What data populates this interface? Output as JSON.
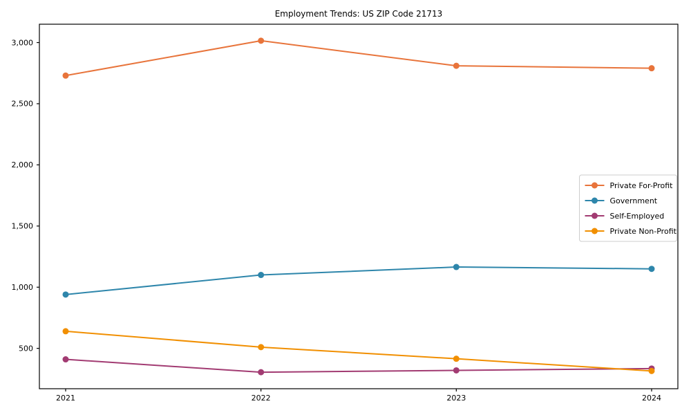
{
  "chart_data": {
    "type": "line",
    "title": "Employment Trends: US ZIP Code 21713",
    "xlabel": "",
    "ylabel": "",
    "x": [
      "2021",
      "2022",
      "2023",
      "2024"
    ],
    "series": [
      {
        "name": "Private For-Profit",
        "color": "#e8743b",
        "values": [
          2730,
          3015,
          2810,
          2790
        ]
      },
      {
        "name": "Government",
        "color": "#2e86ab",
        "values": [
          940,
          1100,
          1165,
          1150
        ]
      },
      {
        "name": "Self-Employed",
        "color": "#a23b72",
        "values": [
          410,
          305,
          320,
          335
        ]
      },
      {
        "name": "Private Non-Profit",
        "color": "#f18f01",
        "values": [
          640,
          510,
          415,
          315
        ]
      }
    ],
    "yticks": [
      500,
      1000,
      1500,
      2000,
      2500,
      3000
    ],
    "ytick_labels": [
      "500",
      "1,000",
      "1,500",
      "2,000",
      "2,500",
      "3,000"
    ],
    "ylim": [
      170,
      3150
    ],
    "grid": false,
    "legend_position": "center-right",
    "marker": "circle",
    "frame_color": "#000000",
    "legend_border_color": "#cccccc"
  }
}
